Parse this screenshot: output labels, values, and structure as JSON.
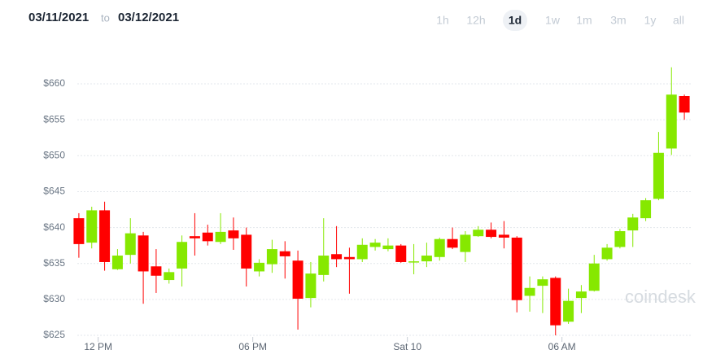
{
  "header": {
    "start_date": "03/11/2021",
    "separator": "to",
    "end_date": "03/12/2021",
    "ranges": [
      "1h",
      "12h",
      "1d",
      "1w",
      "1m",
      "3m",
      "1y",
      "all"
    ],
    "active_range": "1d"
  },
  "watermark": "coindesk",
  "chart_data": {
    "type": "candlestick",
    "categories": [
      null,
      null,
      null,
      null,
      null,
      null,
      null,
      null,
      null,
      null,
      null,
      null,
      null,
      null,
      null,
      null,
      null,
      null,
      null,
      null,
      null,
      null,
      null,
      null,
      null,
      null,
      null,
      null,
      null,
      null,
      null,
      null,
      null,
      null,
      null,
      null,
      null,
      null,
      null,
      null,
      null,
      null,
      null,
      null,
      null,
      null,
      null,
      null
    ],
    "open": [
      641.3,
      637.9,
      642.4,
      634.2,
      636.2,
      638.9,
      634.6,
      632.7,
      634.3,
      638.8,
      639.3,
      638.0,
      639.6,
      639.0,
      633.9,
      634.9,
      636.7,
      635.4,
      630.2,
      633.4,
      636.3,
      635.9,
      635.6,
      637.3,
      637.0,
      637.5,
      635.2,
      635.3,
      635.9,
      638.4,
      636.6,
      638.8,
      639.7,
      639.0,
      638.6,
      630.5,
      631.9,
      633.0,
      626.9,
      630.2,
      631.2,
      635.6,
      637.3,
      639.6,
      641.3,
      644.0,
      651.0,
      658.3
    ],
    "high": [
      642.0,
      642.9,
      643.6,
      637.0,
      641.3,
      639.4,
      637.0,
      634.3,
      638.9,
      642.0,
      640.4,
      642.0,
      641.4,
      640.0,
      635.6,
      638.3,
      638.1,
      636.8,
      635.2,
      641.3,
      640.2,
      637.2,
      638.5,
      638.4,
      638.5,
      637.7,
      637.7,
      637.9,
      638.6,
      640.0,
      639.5,
      640.2,
      640.7,
      640.9,
      638.8,
      633.2,
      633.2,
      633.2,
      631.5,
      632.0,
      636.2,
      637.7,
      639.8,
      641.9,
      644.1,
      653.3,
      662.3,
      658.5
    ],
    "low": [
      635.8,
      637.1,
      634.0,
      634.1,
      635.0,
      629.4,
      630.9,
      632.2,
      631.8,
      636.1,
      637.5,
      637.7,
      636.9,
      631.8,
      633.2,
      633.7,
      632.9,
      625.8,
      628.9,
      632.5,
      634.5,
      630.8,
      635.2,
      636.8,
      636.7,
      635.1,
      633.5,
      634.5,
      635.4,
      637.0,
      635.2,
      638.7,
      638.5,
      637.1,
      628.2,
      628.3,
      628.1,
      625.0,
      626.6,
      628.1,
      631.1,
      635.4,
      637.1,
      637.3,
      640.9,
      643.8,
      650.1,
      655.0
    ],
    "close": [
      637.7,
      642.4,
      635.2,
      636.1,
      639.2,
      633.9,
      633.3,
      633.8,
      638.0,
      638.5,
      638.1,
      639.4,
      638.5,
      634.3,
      635.1,
      637.0,
      636.0,
      630.1,
      633.6,
      636.1,
      635.6,
      635.6,
      637.6,
      637.9,
      637.5,
      635.2,
      635.3,
      636.1,
      638.4,
      637.2,
      639.0,
      639.7,
      638.7,
      638.6,
      629.9,
      631.6,
      632.8,
      626.4,
      629.8,
      631.1,
      635.0,
      637.2,
      639.5,
      641.4,
      643.8,
      650.4,
      658.5,
      656.0
    ],
    "up_color": "#86e800",
    "down_color": "#ff0000",
    "xlim": [
      -0.5,
      47.5
    ],
    "xticks": [
      {
        "value": 1.5,
        "label": "12 PM"
      },
      {
        "value": 13.5,
        "label": "06 PM"
      },
      {
        "value": 25.5,
        "label": "Sat 10"
      },
      {
        "value": 37.5,
        "label": "06 AM"
      }
    ],
    "ylim": [
      623,
      663
    ],
    "yticks": [
      {
        "value": 625,
        "label": "$625"
      },
      {
        "value": 630,
        "label": "$630"
      },
      {
        "value": 635,
        "label": "$635"
      },
      {
        "value": 640,
        "label": "$640"
      },
      {
        "value": 645,
        "label": "$645"
      },
      {
        "value": 650,
        "label": "$650"
      },
      {
        "value": 655,
        "label": "$655"
      },
      {
        "value": 660,
        "label": "$660"
      }
    ],
    "grid": true
  }
}
